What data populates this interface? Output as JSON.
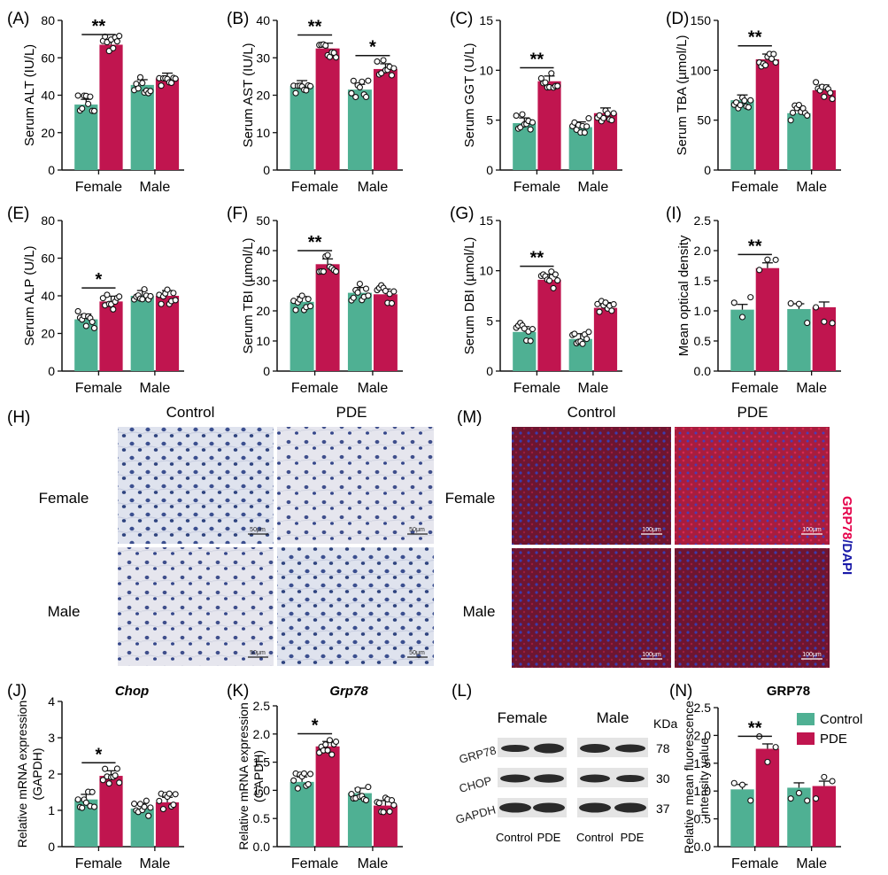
{
  "colors": {
    "control": "#4FB093",
    "pde": "#C0154F",
    "axis": "#111111",
    "red": "#E5004A",
    "blue": "#1a1aa8"
  },
  "groups": [
    "Female",
    "Male"
  ],
  "legend": {
    "title": "GRP78",
    "control": "Control",
    "pde": "PDE"
  },
  "chart_data": [
    {
      "letter": "(A)",
      "type": "bar",
      "ylabel": "Serum ALT (IU/L)",
      "ylim": [
        0,
        80
      ],
      "yticks": [
        0,
        20,
        40,
        60,
        80
      ],
      "series": [
        {
          "name": "Control",
          "values": [
            35,
            45.5
          ]
        },
        {
          "name": "PDE",
          "values": [
            67,
            49
          ]
        }
      ],
      "sig": [
        {
          "group": 0,
          "label": "**"
        }
      ]
    },
    {
      "letter": "(B)",
      "type": "bar",
      "ylabel": "Serum AST (IU/L)",
      "ylim": [
        0,
        40
      ],
      "yticks": [
        0,
        10,
        20,
        30,
        40
      ],
      "series": [
        {
          "name": "Control",
          "values": [
            22.5,
            21.5
          ]
        },
        {
          "name": "PDE",
          "values": [
            32.5,
            27
          ]
        }
      ],
      "sig": [
        {
          "group": 0,
          "label": "**"
        },
        {
          "group": 1,
          "label": "*"
        }
      ]
    },
    {
      "letter": "(C)",
      "type": "bar",
      "ylabel": "Serum GGT (U/L)",
      "ylim": [
        0,
        15
      ],
      "yticks": [
        0,
        5,
        10,
        15
      ],
      "series": [
        {
          "name": "Control",
          "values": [
            4.7,
            4.3
          ]
        },
        {
          "name": "PDE",
          "values": [
            8.9,
            5.7
          ]
        }
      ],
      "sig": [
        {
          "group": 0,
          "label": "**"
        }
      ]
    },
    {
      "letter": "(D)",
      "type": "bar",
      "ylabel": "Serum TBA (µmol/L)",
      "ylim": [
        0,
        150
      ],
      "yticks": [
        0,
        50,
        100,
        150
      ],
      "series": [
        {
          "name": "Control",
          "values": [
            70,
            57
          ]
        },
        {
          "name": "PDE",
          "values": [
            111,
            80
          ]
        }
      ],
      "sig": [
        {
          "group": 0,
          "label": "**"
        }
      ]
    },
    {
      "letter": "(E)",
      "type": "bar",
      "ylabel": "Serum ALP (U/L)",
      "ylim": [
        0,
        80
      ],
      "yticks": [
        0,
        20,
        40,
        60,
        80
      ],
      "series": [
        {
          "name": "Control",
          "values": [
            27.5,
            40
          ]
        },
        {
          "name": "PDE",
          "values": [
            37,
            40
          ]
        }
      ],
      "sig": [
        {
          "group": 0,
          "label": "*"
        }
      ]
    },
    {
      "letter": "(F)",
      "type": "bar",
      "ylabel": "Serum TBI (µmol/L)",
      "ylim": [
        0,
        50
      ],
      "yticks": [
        0,
        10,
        20,
        30,
        40,
        50
      ],
      "series": [
        {
          "name": "Control",
          "values": [
            23,
            26
          ]
        },
        {
          "name": "PDE",
          "values": [
            35.5,
            25.5
          ]
        }
      ],
      "sig": [
        {
          "group": 0,
          "label": "**"
        }
      ]
    },
    {
      "letter": "(G)",
      "type": "bar",
      "ylabel": "Serum DBI (µmol/L)",
      "ylim": [
        0,
        15
      ],
      "yticks": [
        0,
        5,
        10,
        15
      ],
      "series": [
        {
          "name": "Control",
          "values": [
            3.9,
            3.2
          ]
        },
        {
          "name": "PDE",
          "values": [
            9.1,
            6.3
          ]
        }
      ],
      "sig": [
        {
          "group": 0,
          "label": "**"
        }
      ]
    },
    {
      "letter": "(I)",
      "type": "bar",
      "ylabel": "Mean optical density",
      "ylim": [
        0,
        2.5
      ],
      "yticks": [
        "0.0",
        "0.5",
        "1.0",
        "1.5",
        "2.0",
        "2.5"
      ],
      "series": [
        {
          "name": "Control",
          "values": [
            1.02,
            1.03
          ]
        },
        {
          "name": "PDE",
          "values": [
            1.71,
            1.06
          ]
        }
      ],
      "sig": [
        {
          "group": 0,
          "label": "**"
        }
      ]
    },
    {
      "letter": "(J)",
      "type": "bar",
      "title": "Chop",
      "ylabel": "Relative mRNA expression (GAPDH)",
      "ylim": [
        0,
        4
      ],
      "yticks": [
        0,
        1,
        2,
        3,
        4
      ],
      "series": [
        {
          "name": "Control",
          "values": [
            1.3,
            1.05
          ]
        },
        {
          "name": "PDE",
          "values": [
            1.95,
            1.22
          ]
        }
      ],
      "sig": [
        {
          "group": 0,
          "label": "*"
        }
      ]
    },
    {
      "letter": "(K)",
      "type": "bar",
      "title": "Grp78",
      "ylabel": "Relative mRNA expression (GAPDH)",
      "ylim": [
        0,
        2.5
      ],
      "yticks": [
        "0.0",
        "0.5",
        "1.0",
        "1.5",
        "2.0",
        "2.5"
      ],
      "series": [
        {
          "name": "Control",
          "values": [
            1.15,
            0.95
          ]
        },
        {
          "name": "PDE",
          "values": [
            1.78,
            0.73
          ]
        }
      ],
      "sig": [
        {
          "group": 0,
          "label": "*"
        }
      ]
    },
    {
      "letter": "(N)",
      "type": "bar",
      "title": "GRP78",
      "ylabel": "Relative mean fluorescence intensity value",
      "ylim": [
        0,
        2.5
      ],
      "yticks": [
        "0.0",
        "0.5",
        "1.0",
        "1.5",
        "2.0",
        "2.5"
      ],
      "series": [
        {
          "name": "Control",
          "values": [
            1.03,
            1.06
          ]
        },
        {
          "name": "PDE",
          "values": [
            1.76,
            1.09
          ]
        }
      ],
      "sig": [
        {
          "group": 0,
          "label": "**"
        }
      ]
    }
  ],
  "histology": {
    "letter": "(H)",
    "columns": [
      "Control",
      "PDE"
    ],
    "rows": [
      "Female",
      "Male"
    ],
    "scale": "50μm"
  },
  "fluorescence": {
    "letter": "(M)",
    "columns": [
      "Control",
      "PDE"
    ],
    "rows": [
      "Female",
      "Male"
    ],
    "scale": "100μm",
    "side_label_a": "GRP78",
    "side_label_b": "/DAPI"
  },
  "western": {
    "letter": "(L)",
    "groups": [
      "Female",
      "Male"
    ],
    "unit": "KDa",
    "bands": [
      {
        "name": "GRP78",
        "kda": "78"
      },
      {
        "name": "CHOP",
        "kda": "30"
      },
      {
        "name": "GAPDH",
        "kda": "37"
      }
    ],
    "lanes": [
      "Control",
      "PDE",
      "Control",
      "PDE"
    ]
  }
}
